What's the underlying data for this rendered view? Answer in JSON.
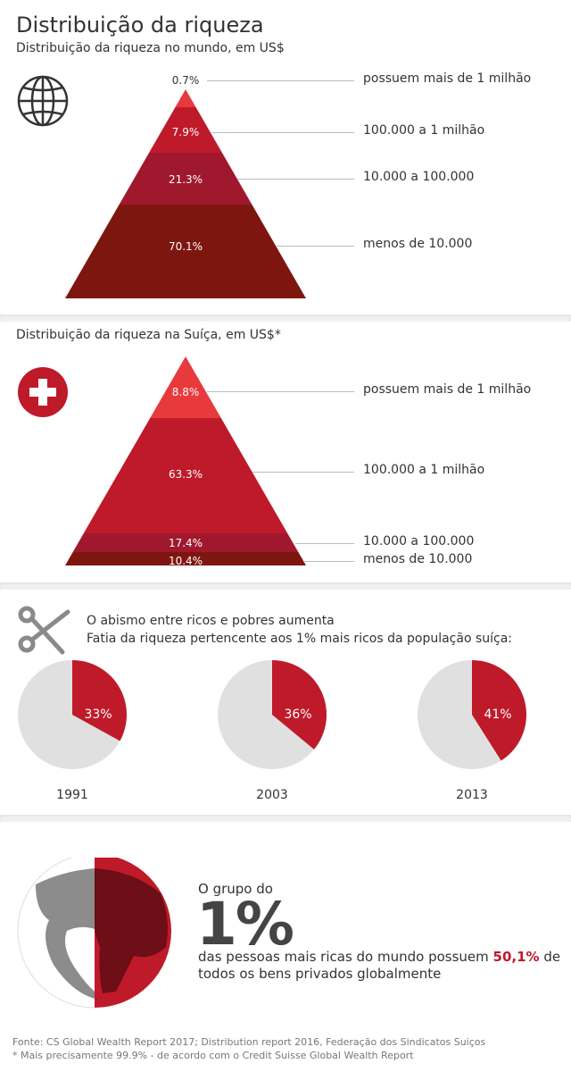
{
  "title": "Distribuição da riqueza",
  "world": {
    "subtitle": "Distribuição da riqueza no mundo, em US$",
    "icon": "globe-icon",
    "chart_data": {
      "type": "pyramid",
      "categories": [
        "possuem mais de 1 milhão",
        "100.000 a 1 milhão",
        "10.000 a 100.000",
        "menos de 10.000"
      ],
      "values": [
        0.7,
        7.9,
        21.3,
        70.1
      ],
      "labels": [
        "0.7%",
        "7.9%",
        "21.3%",
        "70.1%"
      ],
      "colors": [
        "#e8393d",
        "#bf1a2a",
        "#a0182e",
        "#7e1610"
      ]
    }
  },
  "swiss": {
    "subtitle": "Distribuição da riqueza na Suíça, em US$*",
    "icon": "swiss-flag-icon",
    "chart_data": {
      "type": "pyramid",
      "categories": [
        "possuem mais de 1 milhão",
        "100.000 a 1 milhão",
        "10.000 a 100.000",
        "menos de 10.000"
      ],
      "values": [
        8.8,
        63.3,
        17.4,
        10.4
      ],
      "labels": [
        "8.8%",
        "63.3%",
        "17.4%",
        "10.4%"
      ],
      "colors": [
        "#e8393d",
        "#bf1a2a",
        "#a0182e",
        "#7e1610"
      ]
    }
  },
  "gap": {
    "icon": "scissors-icon",
    "heading": "O abismo entre ricos e pobres aumenta",
    "subheading": "Fatia da riqueza pertencente aos 1% mais ricos da população suíça:",
    "chart_data": {
      "type": "pie",
      "categories": [
        "1991",
        "2003",
        "2013"
      ],
      "values": [
        33,
        36,
        41
      ],
      "labels": [
        "33%",
        "36%",
        "41%"
      ],
      "colors": {
        "share": "#bf1a2a",
        "rest": "#e0e0e0"
      }
    }
  },
  "onepercent": {
    "icon": "earth-globe-icon",
    "intro": "O grupo do",
    "big": "1%",
    "text_before": "das pessoas mais ricas do mundo possuem ",
    "highlight": "50,1%",
    "text_after": " de",
    "line2": "todos os bens privados globalmente",
    "highlight_color": "#bf1a2a"
  },
  "footer": {
    "source": "Fonte:  CS Global Wealth Report 2017; Distribution report 2016, Federação dos Sindicatos Suiços",
    "note": "* Mais precisamente 99.9% - de acordo com o Credit Suisse Global Wealth Report"
  }
}
